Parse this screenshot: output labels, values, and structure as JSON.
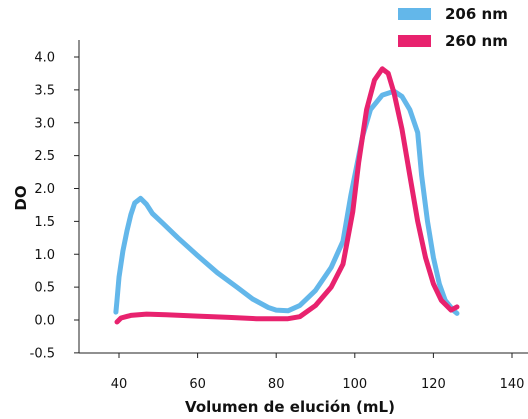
{
  "chart_data": {
    "type": "line",
    "xlabel": "Volumen de elución (mL)",
    "ylabel": "DO",
    "xlim": [
      30,
      140
    ],
    "ylim": [
      -0.5,
      4.0
    ],
    "x_ticks": [
      "40",
      "60",
      "80",
      "100",
      "120",
      "140"
    ],
    "y_ticks": [
      "-0.5",
      "0.0",
      "0.5",
      "1.0",
      "1.5",
      "2.0",
      "2.5",
      "3.0",
      "3.5",
      "4.0"
    ],
    "grid": false,
    "legend_position": "top-right",
    "series": [
      {
        "name": "206 nm",
        "color": "#63b7ea",
        "points": [
          [
            39.2,
            0.12
          ],
          [
            39.5,
            0.3
          ],
          [
            40,
            0.65
          ],
          [
            41,
            1.05
          ],
          [
            42,
            1.35
          ],
          [
            43,
            1.6
          ],
          [
            44,
            1.78
          ],
          [
            45.5,
            1.85
          ],
          [
            47,
            1.76
          ],
          [
            48.5,
            1.62
          ],
          [
            51,
            1.48
          ],
          [
            55,
            1.25
          ],
          [
            60,
            0.98
          ],
          [
            65,
            0.72
          ],
          [
            70,
            0.5
          ],
          [
            74,
            0.32
          ],
          [
            78,
            0.19
          ],
          [
            80,
            0.15
          ],
          [
            83,
            0.14
          ],
          [
            86,
            0.22
          ],
          [
            90,
            0.45
          ],
          [
            94,
            0.8
          ],
          [
            97,
            1.2
          ],
          [
            99,
            1.9
          ],
          [
            102,
            2.8
          ],
          [
            104,
            3.2
          ],
          [
            107,
            3.42
          ],
          [
            110,
            3.48
          ],
          [
            112,
            3.4
          ],
          [
            114,
            3.2
          ],
          [
            116,
            2.85
          ],
          [
            117,
            2.2
          ],
          [
            118.5,
            1.5
          ],
          [
            120,
            0.95
          ],
          [
            121.5,
            0.55
          ],
          [
            123,
            0.3
          ],
          [
            125,
            0.15
          ],
          [
            126,
            0.1
          ]
        ]
      },
      {
        "name": "260 nm",
        "color": "#e8226e",
        "points": [
          [
            39.5,
            -0.03
          ],
          [
            40.5,
            0.03
          ],
          [
            43,
            0.07
          ],
          [
            47,
            0.09
          ],
          [
            52,
            0.08
          ],
          [
            60,
            0.06
          ],
          [
            68,
            0.04
          ],
          [
            75,
            0.02
          ],
          [
            83,
            0.02
          ],
          [
            86,
            0.05
          ],
          [
            90,
            0.22
          ],
          [
            94,
            0.5
          ],
          [
            97,
            0.85
          ],
          [
            99.5,
            1.65
          ],
          [
            101,
            2.4
          ],
          [
            103,
            3.2
          ],
          [
            105,
            3.65
          ],
          [
            107,
            3.82
          ],
          [
            108.5,
            3.75
          ],
          [
            110,
            3.45
          ],
          [
            112,
            2.9
          ],
          [
            114,
            2.2
          ],
          [
            116,
            1.5
          ],
          [
            118,
            0.95
          ],
          [
            120,
            0.55
          ],
          [
            122,
            0.3
          ],
          [
            124.5,
            0.15
          ],
          [
            126,
            0.2
          ]
        ]
      }
    ]
  }
}
